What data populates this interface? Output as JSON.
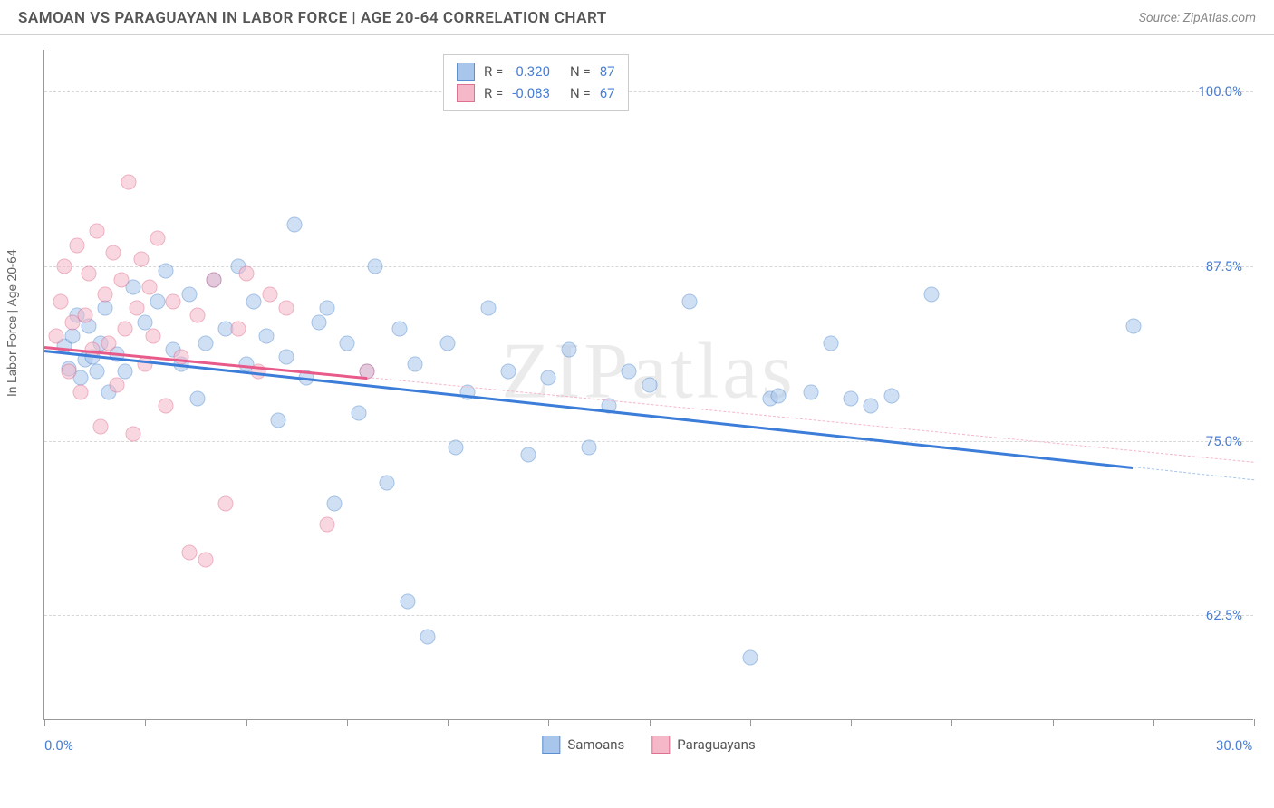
{
  "title": "SAMOAN VS PARAGUAYAN IN LABOR FORCE | AGE 20-64 CORRELATION CHART",
  "source": "Source: ZipAtlas.com",
  "y_axis_title": "In Labor Force | Age 20-64",
  "watermark": "ZIPatlas",
  "chart": {
    "type": "scatter",
    "xlim": [
      0,
      30
    ],
    "ylim": [
      55,
      103
    ],
    "x_ticks": [
      0,
      2.5,
      5,
      7.5,
      10,
      12.5,
      15,
      17.5,
      20,
      22.5,
      25,
      27.5,
      30
    ],
    "x_tick_labels_shown": {
      "0": "0.0%",
      "30": "30.0%"
    },
    "y_ticks": [
      62.5,
      75.0,
      87.5,
      100.0
    ],
    "y_tick_labels": [
      "62.5%",
      "75.0%",
      "87.5%",
      "100.0%"
    ],
    "background_color": "#ffffff",
    "grid_color": "#d8d8d8",
    "axis_color": "#999999",
    "label_color": "#4a7fd4",
    "point_radius": 8.5,
    "point_opacity": 0.55,
    "series": [
      {
        "name": "Samoans",
        "color": "#a8c6ec",
        "border_color": "#5a8fd0",
        "R": "-0.320",
        "N": "87",
        "trend": {
          "x1": 0,
          "y1": 81.5,
          "x2": 30,
          "y2": 72.2,
          "color": "#3b7dd8",
          "width": 2.5,
          "dash_color": "#a8c6ec"
        },
        "points": [
          [
            0.5,
            81.8
          ],
          [
            0.6,
            80.2
          ],
          [
            0.7,
            82.5
          ],
          [
            0.8,
            84.0
          ],
          [
            0.9,
            79.5
          ],
          [
            1.0,
            80.8
          ],
          [
            1.1,
            83.2
          ],
          [
            1.2,
            81.0
          ],
          [
            1.3,
            80.0
          ],
          [
            1.4,
            82.0
          ],
          [
            1.5,
            84.5
          ],
          [
            1.6,
            78.5
          ],
          [
            1.8,
            81.2
          ],
          [
            2.0,
            80.0
          ],
          [
            2.2,
            86.0
          ],
          [
            2.5,
            83.5
          ],
          [
            2.8,
            85.0
          ],
          [
            3.0,
            87.2
          ],
          [
            3.2,
            81.5
          ],
          [
            3.4,
            80.5
          ],
          [
            3.6,
            85.5
          ],
          [
            3.8,
            78.0
          ],
          [
            4.0,
            82.0
          ],
          [
            4.2,
            86.5
          ],
          [
            4.5,
            83.0
          ],
          [
            4.8,
            87.5
          ],
          [
            5.0,
            80.5
          ],
          [
            5.2,
            85.0
          ],
          [
            5.5,
            82.5
          ],
          [
            5.8,
            76.5
          ],
          [
            6.0,
            81.0
          ],
          [
            6.2,
            90.5
          ],
          [
            6.5,
            79.5
          ],
          [
            6.8,
            83.5
          ],
          [
            7.0,
            84.5
          ],
          [
            7.2,
            70.5
          ],
          [
            7.5,
            82.0
          ],
          [
            7.8,
            77.0
          ],
          [
            8.0,
            80.0
          ],
          [
            8.2,
            87.5
          ],
          [
            8.5,
            72.0
          ],
          [
            8.8,
            83.0
          ],
          [
            9.0,
            63.5
          ],
          [
            9.2,
            80.5
          ],
          [
            9.5,
            61.0
          ],
          [
            10.0,
            82.0
          ],
          [
            10.2,
            74.5
          ],
          [
            10.5,
            78.5
          ],
          [
            11.0,
            84.5
          ],
          [
            11.5,
            80.0
          ],
          [
            12.0,
            74.0
          ],
          [
            12.5,
            79.5
          ],
          [
            13.0,
            81.5
          ],
          [
            13.5,
            74.5
          ],
          [
            14.0,
            77.5
          ],
          [
            14.5,
            80.0
          ],
          [
            15.0,
            79.0
          ],
          [
            16.0,
            85.0
          ],
          [
            17.5,
            59.5
          ],
          [
            18.0,
            78.0
          ],
          [
            18.2,
            78.2
          ],
          [
            19.0,
            78.5
          ],
          [
            19.5,
            82.0
          ],
          [
            20.0,
            78.0
          ],
          [
            20.5,
            77.5
          ],
          [
            21.0,
            78.2
          ],
          [
            22.0,
            85.5
          ],
          [
            27.0,
            83.2
          ]
        ]
      },
      {
        "name": "Paraguayans",
        "color": "#f5b8c8",
        "border_color": "#e07090",
        "R": "-0.083",
        "N": "67",
        "trend": {
          "x1": 0,
          "y1": 81.8,
          "x2": 30,
          "y2": 73.5,
          "color": "#e85a8a",
          "width": 2.5,
          "dash_color": "#f5b8c8"
        },
        "points": [
          [
            0.3,
            82.5
          ],
          [
            0.4,
            85.0
          ],
          [
            0.5,
            87.5
          ],
          [
            0.6,
            80.0
          ],
          [
            0.7,
            83.5
          ],
          [
            0.8,
            89.0
          ],
          [
            0.9,
            78.5
          ],
          [
            1.0,
            84.0
          ],
          [
            1.1,
            87.0
          ],
          [
            1.2,
            81.5
          ],
          [
            1.3,
            90.0
          ],
          [
            1.4,
            76.0
          ],
          [
            1.5,
            85.5
          ],
          [
            1.6,
            82.0
          ],
          [
            1.7,
            88.5
          ],
          [
            1.8,
            79.0
          ],
          [
            1.9,
            86.5
          ],
          [
            2.0,
            83.0
          ],
          [
            2.1,
            93.5
          ],
          [
            2.2,
            75.5
          ],
          [
            2.3,
            84.5
          ],
          [
            2.4,
            88.0
          ],
          [
            2.5,
            80.5
          ],
          [
            2.6,
            86.0
          ],
          [
            2.7,
            82.5
          ],
          [
            2.8,
            89.5
          ],
          [
            3.0,
            77.5
          ],
          [
            3.2,
            85.0
          ],
          [
            3.4,
            81.0
          ],
          [
            3.6,
            67.0
          ],
          [
            3.8,
            84.0
          ],
          [
            4.0,
            66.5
          ],
          [
            4.2,
            86.5
          ],
          [
            4.5,
            70.5
          ],
          [
            4.8,
            83.0
          ],
          [
            5.0,
            87.0
          ],
          [
            5.3,
            80.0
          ],
          [
            5.6,
            85.5
          ],
          [
            6.0,
            84.5
          ],
          [
            7.0,
            69.0
          ],
          [
            8.0,
            80.0
          ]
        ]
      }
    ]
  },
  "legend_bottom": [
    {
      "label": "Samoans",
      "fill": "#a8c6ec",
      "border": "#5a8fd0"
    },
    {
      "label": "Paraguayans",
      "fill": "#f5b8c8",
      "border": "#e07090"
    }
  ]
}
